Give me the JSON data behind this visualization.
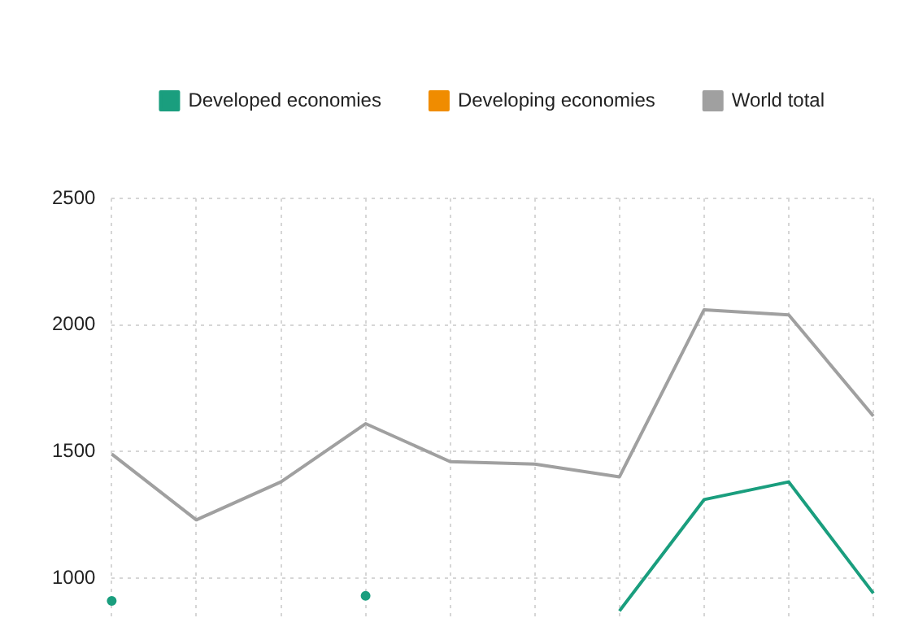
{
  "chart_data": {
    "type": "line",
    "categories": [
      null,
      null,
      null,
      null,
      null,
      null,
      null,
      null,
      null,
      null
    ],
    "series": [
      {
        "name": "Developed economies",
        "color": "#1a9e7e",
        "values": [
          910,
          null,
          null,
          930,
          null,
          null,
          870,
          1310,
          1380,
          940
        ]
      },
      {
        "name": "Developing economies",
        "color": "#f08c00",
        "values": [
          null,
          null,
          null,
          null,
          null,
          null,
          null,
          null,
          null,
          null
        ]
      },
      {
        "name": "World total",
        "color": "#a0a0a0",
        "values": [
          1490,
          1230,
          1380,
          1610,
          1460,
          1450,
          1400,
          2060,
          2040,
          1640
        ]
      }
    ],
    "ylim": [
      850,
      2500
    ],
    "yticks": [
      1000,
      1500,
      2000,
      2500
    ],
    "grid": true,
    "legend": "top right",
    "tick_labels": "y",
    "marker": "none",
    "line_style": "solid"
  }
}
